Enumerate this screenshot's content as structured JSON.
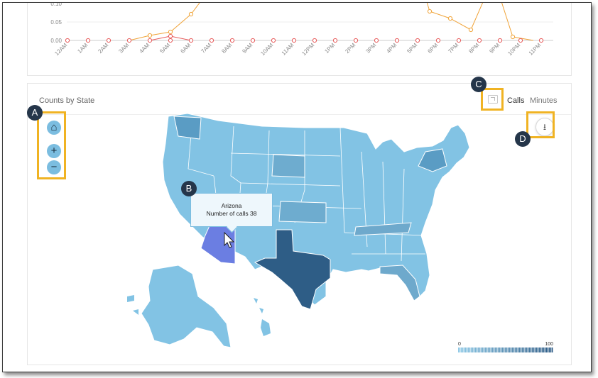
{
  "top_chart": {
    "y_ticks": [
      "0.10",
      "0.05",
      "0.00"
    ],
    "x_ticks": [
      "12AM",
      "1AM",
      "2AM",
      "3AM",
      "4AM",
      "5AM",
      "6AM",
      "7AM",
      "8AM",
      "9AM",
      "10AM",
      "11AM",
      "12PM",
      "1PM",
      "2PM",
      "3PM",
      "4PM",
      "5PM",
      "6PM",
      "7PM",
      "8PM",
      "9PM",
      "10PM",
      "11PM"
    ],
    "series_colors": {
      "orange": "#f0a43a",
      "red": "#e85a5a"
    }
  },
  "map_panel": {
    "title": "Counts by State",
    "metric_toggle": {
      "calls": "Calls",
      "minutes": "Minutes",
      "selected": "Calls"
    },
    "controls": {
      "home": "⌂",
      "zoom_in": "+",
      "zoom_out": "−"
    },
    "download_icon": "download-icon",
    "tooltip": {
      "state": "Arizona",
      "metric_line": "Number of calls 38"
    },
    "legend": {
      "min": "0",
      "max": "100",
      "color_low": "#8cc8e6",
      "color_high": "#2b5a85"
    },
    "highlight_color": "#6b7ee2"
  },
  "callouts": {
    "a": "A",
    "b": "B",
    "c": "C",
    "d": "D"
  },
  "colors": {
    "callout_border": "#f0b323",
    "marker_bg": "#25364a"
  }
}
